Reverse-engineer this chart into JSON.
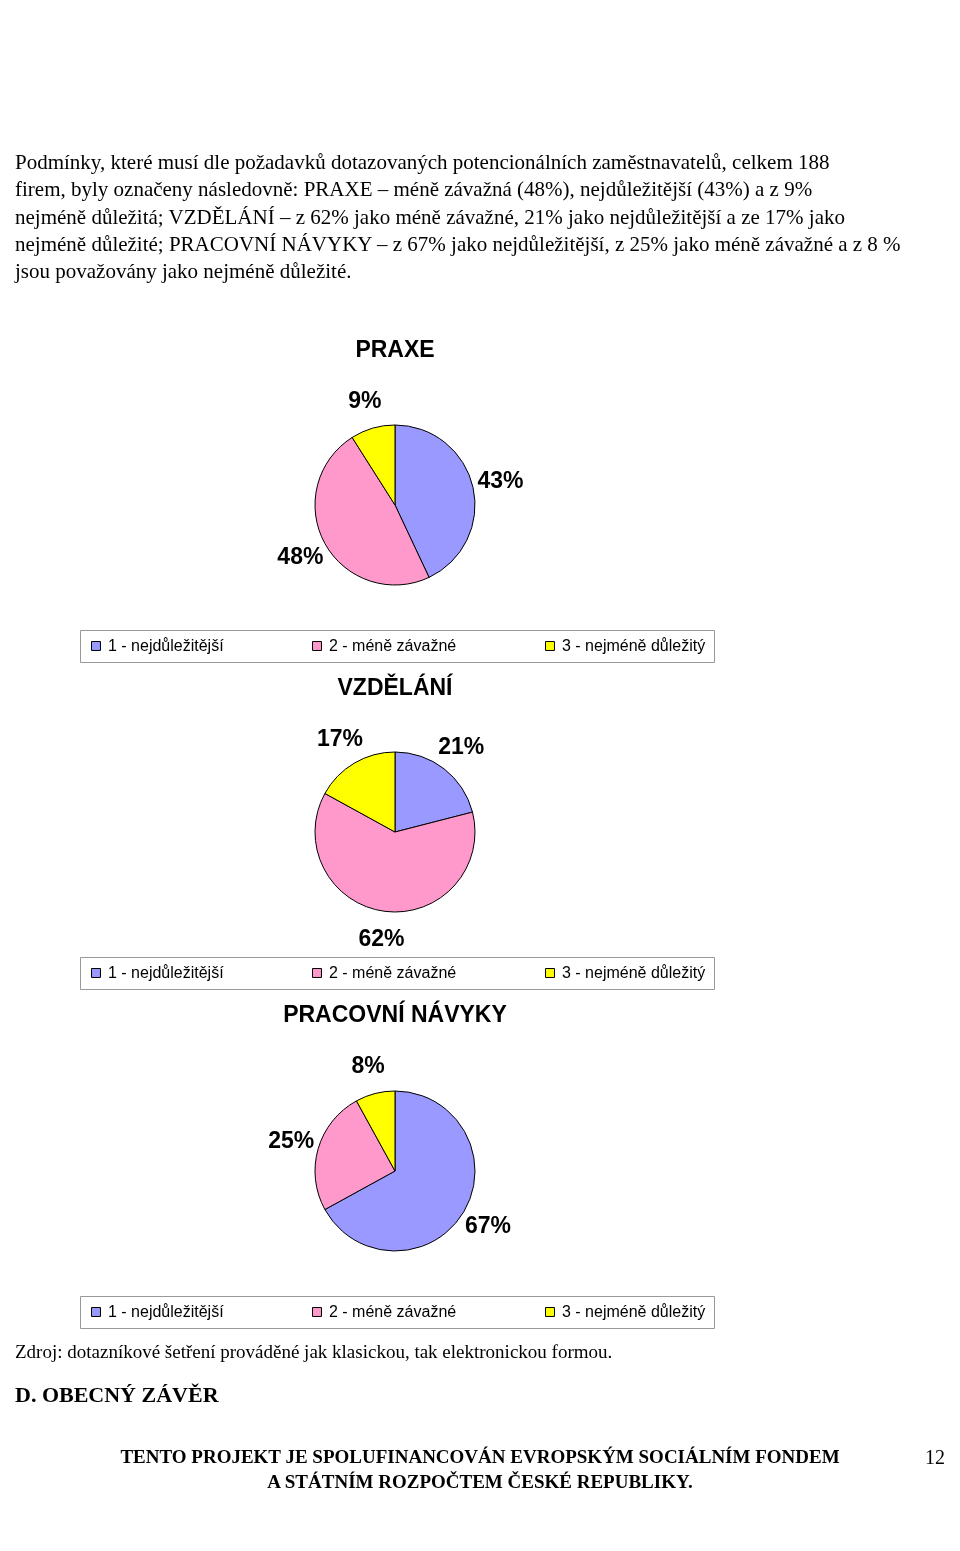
{
  "chart_data": [
    {
      "type": "pie",
      "title": "PRAXE",
      "categories": [
        "1 - nejdůležitější",
        "2 - méně závažné",
        "3 - nejméně důležitý"
      ],
      "values": [
        43,
        48,
        9
      ],
      "value_labels": [
        "43%",
        "48%",
        "9%"
      ],
      "colors": [
        "#9999ff",
        "#ff99cc",
        "#ffff00"
      ],
      "legend": "bottom",
      "annotations": [
        "Podmínky, které musí dle požadavků dotazovaných potencionálních zaměstnavatelů, celkem 188 firem, byly označeny následovně: PRAXE – méně závažná (48%), nejdůležitější (43%) a z 9% nejméně důležitá; VZDĚLÁNÍ – z 62% jako méně závažné, 21% jako nejdůležitější a ze 17% jako nejméně důležité; PRACOVNÍ NÁVYKY – z 67% jako nejdůležitější, z 25% jako méně závažné a z 8 % jsou považovány jako nejméně důležité."
      ]
    },
    {
      "type": "pie",
      "title": "VZDĚLÁNÍ",
      "categories": [
        "1 - nejdůležitější",
        "2 - méně závažné",
        "3 - nejméně důležitý"
      ],
      "values": [
        21,
        62,
        17
      ],
      "value_labels": [
        "21%",
        "62%",
        "17%"
      ],
      "colors": [
        "#9999ff",
        "#ff99cc",
        "#ffff00"
      ],
      "legend": "bottom"
    },
    {
      "type": "pie",
      "title": "PRACOVNÍ NÁVYKY",
      "categories": [
        "1 - nejdůležitější",
        "2 - méně závažné",
        "3 - nejméně důležitý"
      ],
      "values": [
        67,
        25,
        8
      ],
      "value_labels": [
        "67%",
        "25%",
        "8%"
      ],
      "colors": [
        "#9999ff",
        "#ff99cc",
        "#ffff00"
      ],
      "legend": "bottom",
      "annotations": [
        "Zdroj: dotazníkové šetření prováděné jak klasickou, tak elektronickou formou.",
        "D. OBECNÝ ZÁVĚR",
        "TENTO PROJEKT JE SPOLUFINANCOVÁN EVROPSKÝM SOCIÁLNÍM FONDEM A STÁTNÍM ROZPOČTEM ČESKÉ REPUBLIKY.",
        "12"
      ]
    }
  ]
}
